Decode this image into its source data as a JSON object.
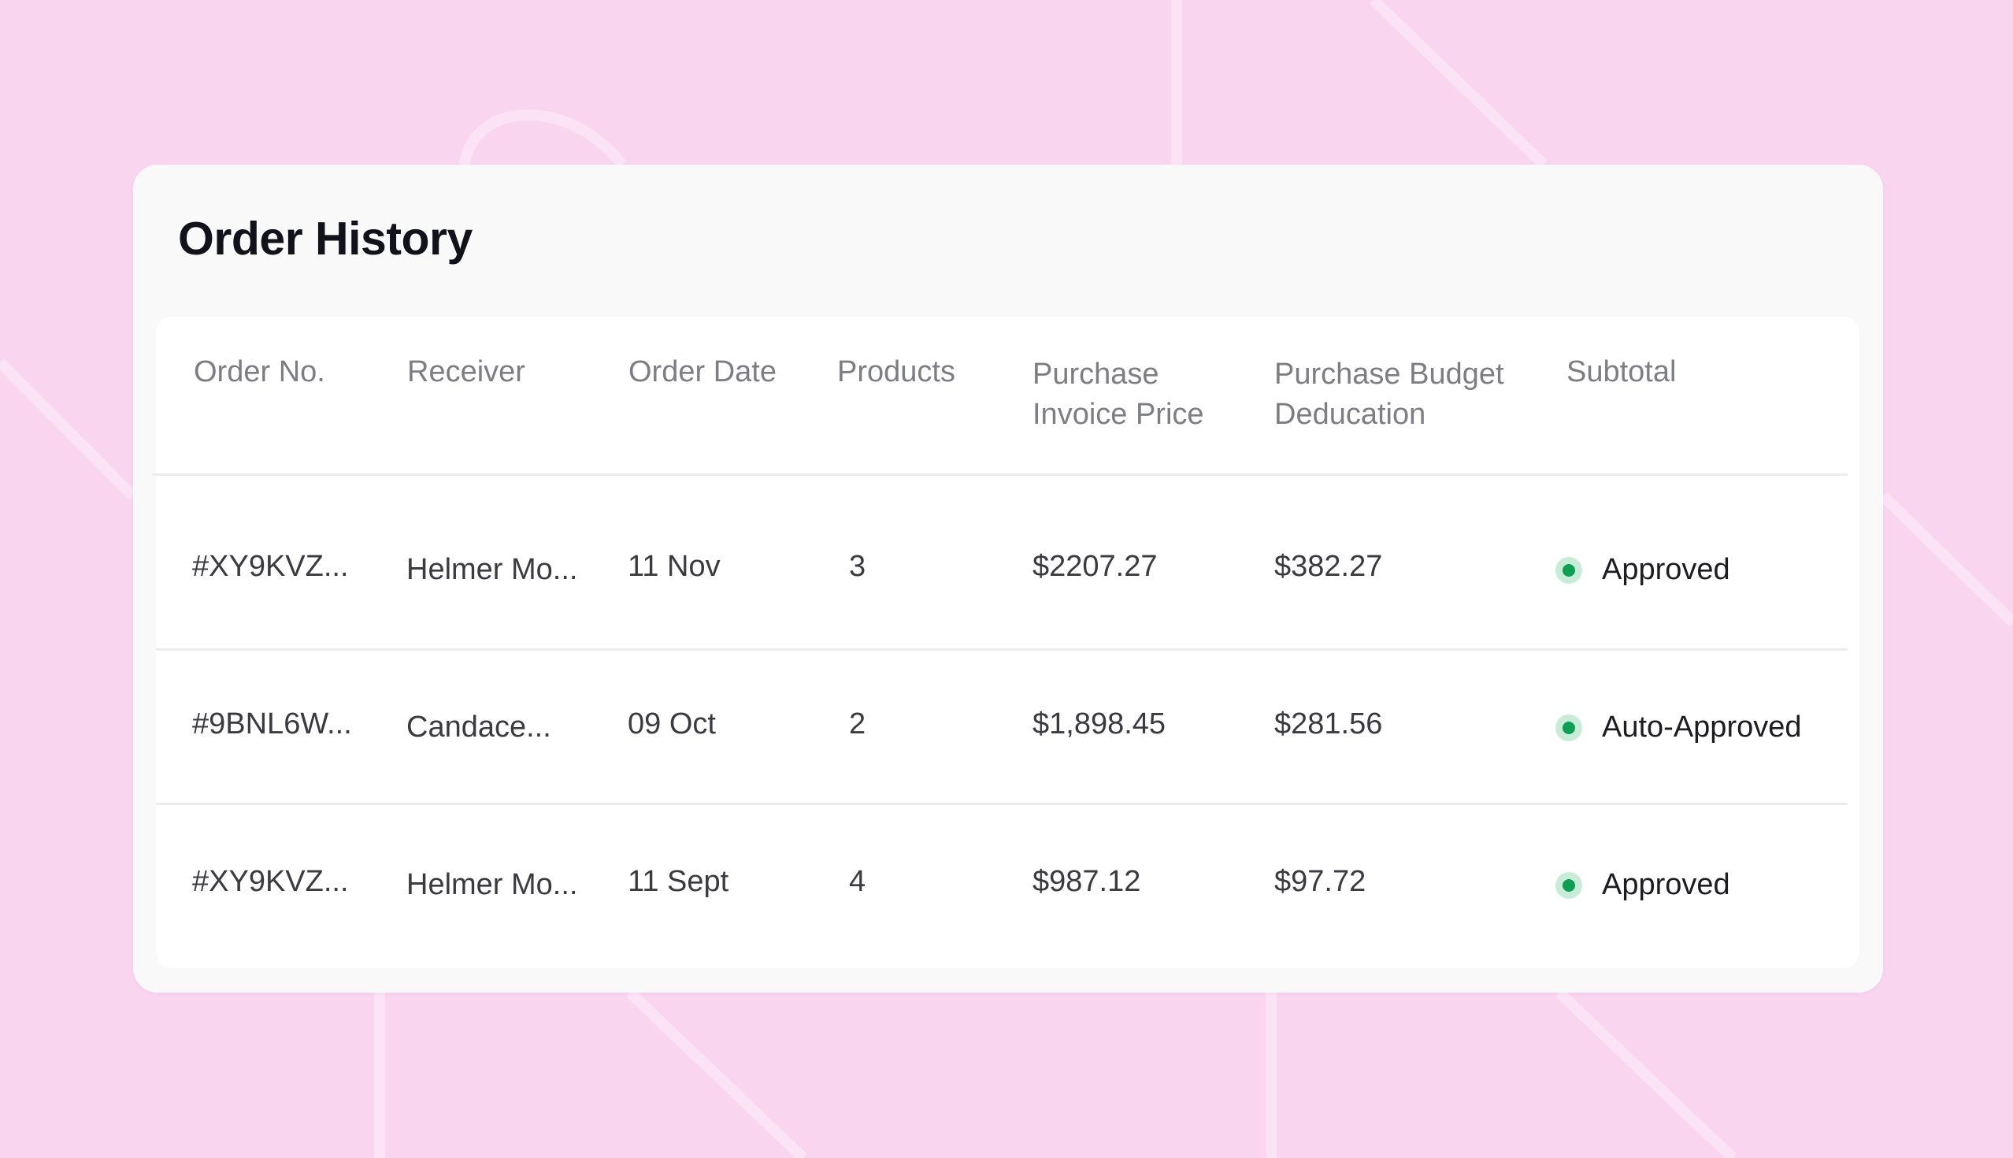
{
  "title": "Order History",
  "columns": [
    "Order No.",
    "Receiver",
    "Order Date",
    "Products",
    "Purchase Invoice Price",
    "Purchase Budget Deducation",
    "Subtotal"
  ],
  "column_lines": {
    "invoice": [
      "Purchase",
      "Invoice Price"
    ],
    "budget": [
      "Purchase Budget",
      "Deducation"
    ]
  },
  "rows": [
    {
      "order_no": "#XY9KVZ...",
      "receiver": "Helmer Mo...",
      "order_date": "11 Nov",
      "products": "3",
      "invoice_price": "$2207.27",
      "budget_deduction": "$382.27",
      "status": "Approved"
    },
    {
      "order_no": "#9BNL6W...",
      "receiver": "Candace...",
      "order_date": "09 Oct",
      "products": "2",
      "invoice_price": "$1,898.45",
      "budget_deduction": "$281.56",
      "status": "Auto-Approved"
    },
    {
      "order_no": "#XY9KVZ...",
      "receiver": "Helmer Mo...",
      "order_date": "11 Sept",
      "products": "4",
      "invoice_price": "$987.12",
      "budget_deduction": "$97.72",
      "status": "Approved"
    }
  ],
  "colors": {
    "background": "#f9d5f0",
    "status_dot": "#0f9e53",
    "status_halo": "#c7ecd7"
  }
}
